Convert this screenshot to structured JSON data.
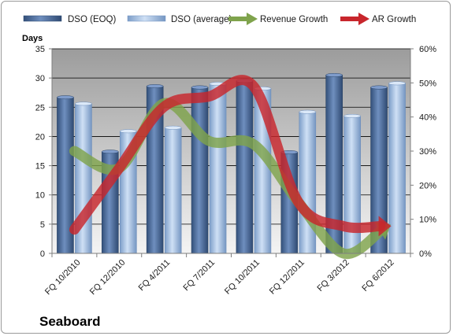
{
  "chart_data": {
    "type": "bar",
    "company": "Seaboard",
    "ylabel": "Days",
    "ylim": [
      0,
      35
    ],
    "yticks": [
      0,
      5,
      10,
      15,
      20,
      25,
      30,
      35
    ],
    "y2lim": [
      0,
      60
    ],
    "y2ticks": [
      "0%",
      "10%",
      "20%",
      "30%",
      "40%",
      "50%",
      "60%"
    ],
    "grid": true,
    "legend_position": "top",
    "categories": [
      "FQ 10/2010",
      "FQ 12/2010",
      "FQ 4/2011",
      "FQ 7/2011",
      "FQ 10/2011",
      "FQ 12/2011",
      "FQ 3/2012",
      "FQ 6/2012"
    ],
    "series": [
      {
        "name": "DSO (EOQ)",
        "type": "bar",
        "axis": "left",
        "color": "#4f6e9e",
        "values": [
          26.7,
          17.4,
          28.6,
          28.4,
          29.5,
          17.3,
          30.5,
          28.4
        ]
      },
      {
        "name": "DSO (average)",
        "type": "bar",
        "axis": "left",
        "color": "#a9c4e6",
        "values": [
          25.6,
          20.9,
          21.5,
          29.0,
          28.2,
          24.2,
          23.5,
          29.1
        ]
      },
      {
        "name": "Revenue Growth",
        "type": "line",
        "axis": "right",
        "color": "#7fa34c",
        "values": [
          30,
          25,
          44,
          33,
          32,
          15,
          0,
          8
        ]
      },
      {
        "name": "AR Growth",
        "type": "line",
        "axis": "right",
        "color": "#c8262c",
        "values": [
          7,
          25,
          43,
          46,
          49,
          15,
          8,
          8
        ]
      }
    ]
  }
}
